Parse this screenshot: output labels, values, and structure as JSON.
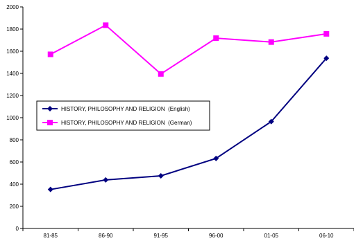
{
  "chart_data": {
    "type": "line",
    "title": "",
    "xlabel": "",
    "ylabel": "",
    "categories": [
      "81-85",
      "86-90",
      "91-95",
      "96-00",
      "01-05",
      "06-10"
    ],
    "ylim": [
      0,
      2000
    ],
    "yticks": [
      0,
      200,
      400,
      600,
      800,
      1000,
      1200,
      1400,
      1600,
      1800,
      2000
    ],
    "grid": false,
    "legend_position": "left",
    "series": [
      {
        "name": "HISTORY, PHILOSOPHY AND RELIGION  (English)",
        "values": [
          352,
          438,
          475,
          632,
          965,
          1537
        ],
        "color": "#000080",
        "marker": "diamond"
      },
      {
        "name": "HISTORY, PHILOSOPHY AND RELIGION  (German)",
        "values": [
          1572,
          1835,
          1395,
          1718,
          1683,
          1757
        ],
        "color": "#ff00ff",
        "marker": "square"
      }
    ]
  }
}
